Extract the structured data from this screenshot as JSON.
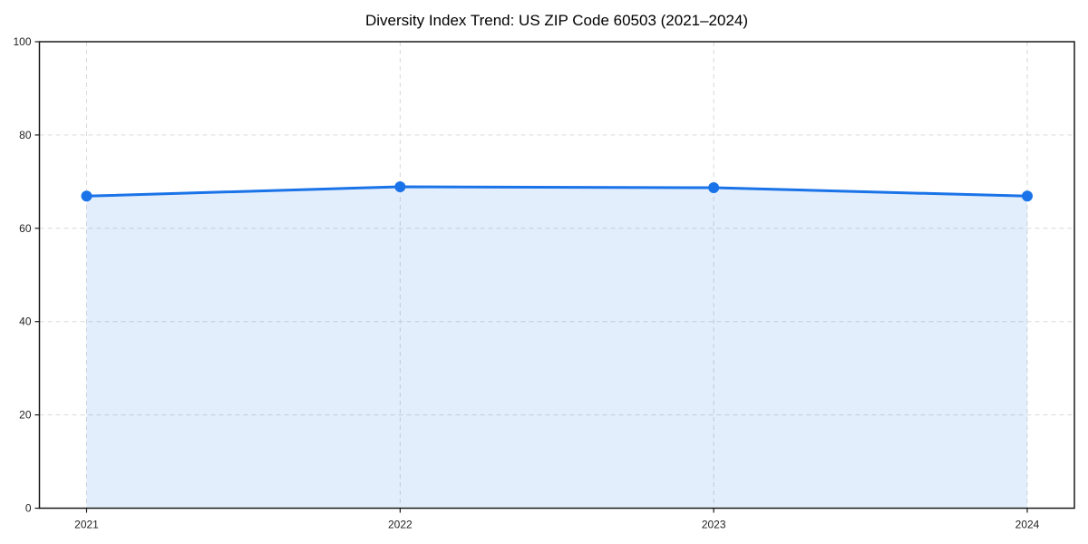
{
  "chart_data": {
    "type": "area",
    "title": "Diversity Index Trend: US ZIP Code 60503 (2021–2024)",
    "xlabel": "",
    "ylabel": "",
    "categories": [
      "2021",
      "2022",
      "2023",
      "2024"
    ],
    "values": [
      66.9,
      68.9,
      68.7,
      66.9
    ],
    "ylim": [
      0,
      100
    ],
    "yticks": [
      0,
      20,
      40,
      60,
      80,
      100
    ],
    "grid": "dashed",
    "legend": "none",
    "marker": "circle",
    "colors": {
      "line": "#1a73e8",
      "fill": "#1a73e8",
      "fill_opacity": 0.12,
      "grid": "#d9d9d9",
      "spine": "#1a1a1a",
      "tick_label": "#1f1f1f",
      "title": "#000000",
      "background": "#ffffff"
    }
  }
}
